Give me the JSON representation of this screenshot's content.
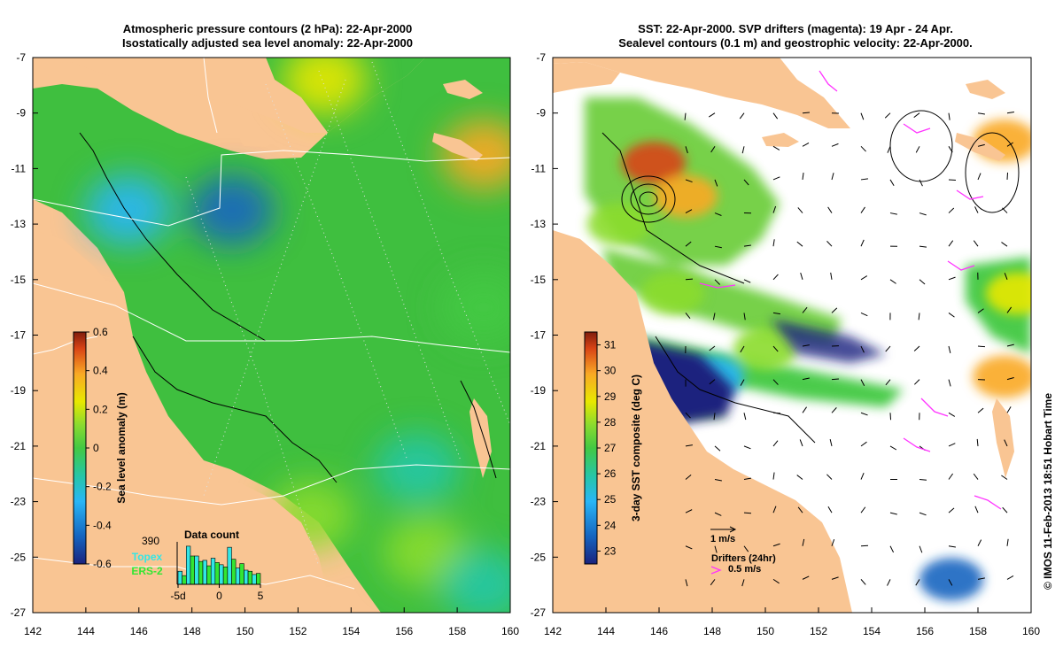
{
  "copyright": "© IMOS 11-Feb-2013 18:51 Hobart Time",
  "colors": {
    "land": "#f9c593",
    "sla_field": "#3fbf3f",
    "sst_field": "#6fcf3f",
    "border": "#000000",
    "drifter": "#ff33ff",
    "topex_label": "#33e6e6",
    "ers2_label": "#33e633"
  },
  "chart_data": [
    {
      "type": "heatmap",
      "title": [
        "Atmospheric pressure contours (2 hPa): 22-Apr-2000",
        "Isostatically adjusted sea level anomaly: 22-Apr-2000"
      ],
      "xlabel": "",
      "ylabel": "",
      "xlim": [
        142,
        160
      ],
      "ylim": [
        -27,
        -7
      ],
      "xticks": [
        142,
        144,
        146,
        148,
        150,
        152,
        154,
        156,
        158,
        160
      ],
      "yticks": [
        -7,
        -9,
        -11,
        -13,
        -15,
        -17,
        -19,
        -21,
        -23,
        -25,
        -27
      ],
      "colorbar": {
        "label": "Sea level anomaly (m)",
        "range": [
          -0.6,
          0.6
        ],
        "ticks": [
          0.6,
          0.4,
          0.2,
          0,
          -0.2,
          -0.4,
          -0.6
        ],
        "colors": [
          "#1a237e",
          "#1565c0",
          "#29b6f6",
          "#26c6a6",
          "#43c943",
          "#8bdb2f",
          "#e8e800",
          "#f9a825",
          "#d84315",
          "#7f1d0d"
        ]
      },
      "anomaly_features": [
        {
          "lon": 145.6,
          "lat": -12.5,
          "value": -0.35
        },
        {
          "lon": 149.5,
          "lat": -12.5,
          "value": -0.4
        },
        {
          "lon": 153.0,
          "lat": -7.8,
          "value": 0.2
        },
        {
          "lon": 159.0,
          "lat": -10.5,
          "value": 0.3
        },
        {
          "lon": 152.5,
          "lat": -23.5,
          "value": 0.05
        },
        {
          "lon": 156.8,
          "lat": -24.8,
          "value": 0.1
        },
        {
          "lon": 156.5,
          "lat": -21.8,
          "value": -0.15
        },
        {
          "lon": 159.0,
          "lat": -26.0,
          "value": -0.15
        },
        {
          "lon": 159.0,
          "lat": -16.0,
          "value": -0.1
        }
      ],
      "inset": {
        "title": "Data count",
        "max_label": "390",
        "xticks": [
          -5,
          0,
          5
        ],
        "xtick_labels": [
          "-5d",
          "0",
          "5"
        ],
        "series": [
          {
            "name": "Topex",
            "values": [
              120,
              350,
              260,
              220,
              240,
              180,
              340,
              150,
              130,
              90
            ]
          },
          {
            "name": "ERS-2",
            "values": [
              80,
              260,
              210,
              170,
              200,
              160,
              230,
              190,
              120,
              100
            ]
          }
        ]
      }
    },
    {
      "type": "heatmap",
      "title": [
        "SST: 22-Apr-2000. SVP drifters (magenta): 19 Apr - 24 Apr.",
        "Sealevel contours (0.1 m) and geostrophic velocity: 22-Apr-2000."
      ],
      "xlabel": "",
      "ylabel": "",
      "xlim": [
        142,
        160
      ],
      "ylim": [
        -27,
        -7
      ],
      "xticks": [
        142,
        144,
        146,
        148,
        150,
        152,
        154,
        156,
        158,
        160
      ],
      "yticks": [
        -7,
        -9,
        -11,
        -13,
        -15,
        -17,
        -19,
        -21,
        -23,
        -25,
        -27
      ],
      "colorbar": {
        "label": "3-day SST composite (deg C)",
        "range": [
          22.5,
          31.5
        ],
        "ticks": [
          31,
          30,
          29,
          28,
          27,
          26,
          25,
          24,
          23
        ],
        "colors": [
          "#1a237e",
          "#1565c0",
          "#29b6f6",
          "#26c6a6",
          "#43c943",
          "#8bdb2f",
          "#e8e800",
          "#f9a825",
          "#d84315",
          "#7f1d0d"
        ]
      },
      "velocity_scale_label": "1 m/s",
      "drifter_legend": {
        "title": "Drifters (24hr)",
        "speed_label": "0.5 m/s"
      },
      "sst_patches": [
        {
          "lon": 145.8,
          "lat": -10.8,
          "value": 30.3
        },
        {
          "lon": 147.0,
          "lat": -12.0,
          "value": 28.8
        },
        {
          "lon": 144.5,
          "lat": -13.0,
          "value": 27.3
        },
        {
          "lon": 146.5,
          "lat": -15.5,
          "value": 27.8
        },
        {
          "lon": 150.0,
          "lat": -17.5,
          "value": 27.5
        },
        {
          "lon": 146.0,
          "lat": -19.0,
          "value": 23.5
        },
        {
          "lon": 148.0,
          "lat": -18.5,
          "value": 24.5
        },
        {
          "lon": 159.0,
          "lat": -18.5,
          "value": 29.0
        },
        {
          "lon": 159.0,
          "lat": -10.0,
          "value": 29.5
        },
        {
          "lon": 159.5,
          "lat": -15.5,
          "value": 28.0
        },
        {
          "lon": 157.0,
          "lat": -25.8,
          "value": 23.5
        }
      ]
    }
  ]
}
